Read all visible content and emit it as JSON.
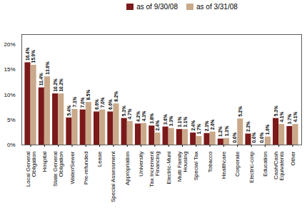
{
  "chart_data": {
    "type": "bar",
    "categories": [
      "Local General\nObligation",
      "Hospital",
      "State General\nObligation",
      "Water/Sewer",
      "Pre-refunded",
      "Lease",
      "Special Assessment",
      "Appropriation",
      "University",
      "Tax Increment\nFinancing",
      "Electric-Muni",
      "Multi Family\nHousing",
      "Special Tax",
      "Tobacco",
      "Healthcare",
      "Corporate",
      "Electric-corp",
      "Education",
      "Cash/Cash\nEquivalents",
      "Other"
    ],
    "series": [
      {
        "name": "as of 9/30/08",
        "color": "#7B1A1A",
        "values": [
          16.4,
          11.4,
          10.2,
          5.4,
          7.0,
          6.6,
          6.6,
          5.3,
          4.2,
          3.8,
          3.6,
          3.1,
          2.4,
          2.3,
          1.2,
          0.0,
          2.2,
          0.0,
          5.3,
          3.7
        ],
        "value_labels": [
          "16.4%",
          "11.4%",
          "10.2%",
          "5.4%",
          "7.0%",
          "6.6%",
          "6.6%",
          "5.3%",
          "4.2%",
          "3.8%",
          "3.6%",
          "3.1%",
          "2.4%",
          "2.3%",
          "1.2%",
          "0.0%",
          "2.2%",
          "0.0%",
          "5.3%",
          "3.7%"
        ]
      },
      {
        "name": "as of 3/31/08",
        "color": "#C9A98A",
        "values": [
          15.9,
          13.6,
          10.2,
          7.1,
          8.5,
          7.0,
          8.2,
          4.7,
          4.3,
          2.4,
          3.3,
          3.1,
          1.7,
          2.6,
          1.3,
          5.2,
          0.0,
          1.6,
          4.1,
          4.1
        ],
        "value_labels": [
          "15.9%",
          "13.6%",
          "10.2%",
          "7.1%",
          "8.5%",
          "7.0%",
          "8.2%",
          "4.7%",
          "4.3%",
          "2.4%",
          "3.3%",
          "3.1%",
          "1.7%",
          "2.6%",
          "1.3%",
          "5.2%",
          "0.0%",
          "1.6%",
          "4.1%",
          "4.1%"
        ]
      }
    ],
    "ylim": [
      0,
      22
    ],
    "yticks": [
      {
        "value": 0,
        "label": "0%"
      },
      {
        "value": 5,
        "label": "5%"
      },
      {
        "value": 10,
        "label": "10%"
      },
      {
        "value": 15,
        "label": "15%"
      },
      {
        "value": 20,
        "label": "20%"
      }
    ],
    "grid": false,
    "legend": "top",
    "data_labels": true
  }
}
